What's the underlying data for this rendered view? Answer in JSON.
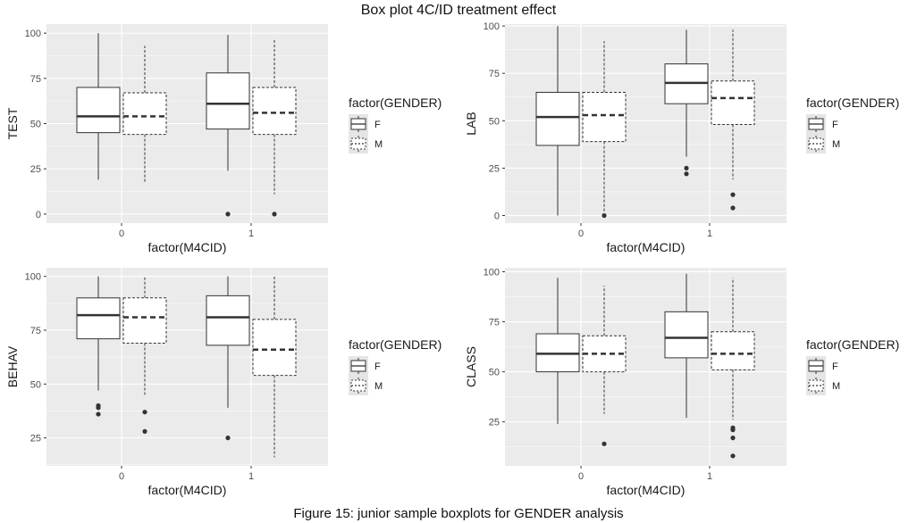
{
  "title": "Box plot 4C/ID treatment effect",
  "caption": "Figure 15: junior sample boxplots for GENDER analysis",
  "colors": {
    "panel_bg": "#ebebeb",
    "grid": "#ffffff",
    "line": "#333333",
    "legend_key_bg": "#e5e5e5"
  },
  "chart_data": [
    {
      "type": "box",
      "xlabel": "factor(M4CID)",
      "ylabel": "TEST",
      "ylim": [
        -5,
        105
      ],
      "yticks": [
        0,
        25,
        50,
        75,
        100
      ],
      "categories": [
        "0",
        "1"
      ],
      "legend": {
        "title": "factor(GENDER)",
        "entries": [
          "F",
          "M"
        ],
        "placement": "right"
      },
      "series": [
        {
          "name": "F",
          "line_style": "solid",
          "boxes": [
            {
              "min": 19,
              "q1": 45,
              "median": 54,
              "q3": 70,
              "max": 100,
              "outliers": []
            },
            {
              "min": 24,
              "q1": 47,
              "median": 61,
              "q3": 78,
              "max": 99,
              "outliers": [
                0
              ]
            }
          ]
        },
        {
          "name": "M",
          "line_style": "dashed",
          "boxes": [
            {
              "min": 17,
              "q1": 44,
              "median": 54,
              "q3": 67,
              "max": 93,
              "outliers": []
            },
            {
              "min": 11,
              "q1": 44,
              "median": 56,
              "q3": 70,
              "max": 97,
              "outliers": [
                0
              ]
            }
          ]
        }
      ]
    },
    {
      "type": "box",
      "xlabel": "factor(M4CID)",
      "ylabel": "LAB",
      "ylim": [
        -4,
        101
      ],
      "yticks": [
        0,
        25,
        50,
        75,
        100
      ],
      "categories": [
        "0",
        "1"
      ],
      "legend": {
        "title": "factor(GENDER)",
        "entries": [
          "F",
          "M"
        ],
        "placement": "right"
      },
      "series": [
        {
          "name": "F",
          "line_style": "solid",
          "boxes": [
            {
              "min": 0,
              "q1": 37,
              "median": 52,
              "q3": 65,
              "max": 100,
              "outliers": []
            },
            {
              "min": 31,
              "q1": 59,
              "median": 70,
              "q3": 80,
              "max": 98,
              "outliers": [
                25,
                22
              ]
            }
          ]
        },
        {
          "name": "M",
          "line_style": "dashed",
          "boxes": [
            {
              "min": 2,
              "q1": 39,
              "median": 53,
              "q3": 65,
              "max": 92,
              "outliers": [
                0
              ]
            },
            {
              "min": 19,
              "q1": 48,
              "median": 62,
              "q3": 71,
              "max": 98,
              "outliers": [
                11,
                4
              ]
            }
          ]
        }
      ]
    },
    {
      "type": "box",
      "xlabel": "factor(M4CID)",
      "ylabel": "BEHAV",
      "ylim": [
        12,
        104
      ],
      "yticks": [
        25,
        50,
        75,
        100
      ],
      "categories": [
        "0",
        "1"
      ],
      "legend": {
        "title": "factor(GENDER)",
        "entries": [
          "F",
          "M"
        ],
        "placement": "right"
      },
      "series": [
        {
          "name": "F",
          "line_style": "solid",
          "boxes": [
            {
              "min": 47,
              "q1": 71,
              "median": 82,
              "q3": 90,
              "max": 100,
              "outliers": [
                40,
                39,
                36
              ]
            },
            {
              "min": 39,
              "q1": 68,
              "median": 81,
              "q3": 91,
              "max": 100,
              "outliers": [
                25
              ]
            }
          ]
        },
        {
          "name": "M",
          "line_style": "dashed",
          "boxes": [
            {
              "min": 45,
              "q1": 69,
              "median": 81,
              "q3": 90,
              "max": 100,
              "outliers": [
                37,
                28
              ]
            },
            {
              "min": 16,
              "q1": 54,
              "median": 66,
              "q3": 80,
              "max": 100,
              "outliers": []
            }
          ]
        }
      ]
    },
    {
      "type": "box",
      "xlabel": "factor(M4CID)",
      "ylabel": "CLASS",
      "ylim": [
        3,
        102
      ],
      "yticks": [
        25,
        50,
        75,
        100
      ],
      "categories": [
        "0",
        "1"
      ],
      "legend": {
        "title": "factor(GENDER)",
        "entries": [
          "F",
          "M"
        ],
        "placement": "right"
      },
      "series": [
        {
          "name": "F",
          "line_style": "solid",
          "boxes": [
            {
              "min": 24,
              "q1": 50,
              "median": 59,
              "q3": 69,
              "max": 97,
              "outliers": []
            },
            {
              "min": 27,
              "q1": 57,
              "median": 67,
              "q3": 80,
              "max": 99,
              "outliers": []
            }
          ]
        },
        {
          "name": "M",
          "line_style": "dashed",
          "boxes": [
            {
              "min": 29,
              "q1": 50,
              "median": 59,
              "q3": 68,
              "max": 93,
              "outliers": [
                14
              ]
            },
            {
              "min": 26,
              "q1": 51,
              "median": 59,
              "q3": 70,
              "max": 97,
              "outliers": [
                22,
                21,
                17,
                8
              ]
            }
          ]
        }
      ]
    }
  ]
}
